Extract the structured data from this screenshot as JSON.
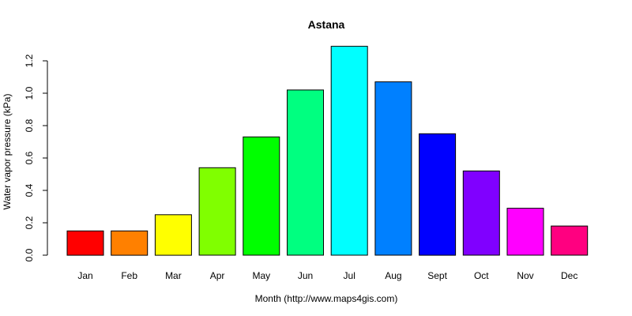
{
  "chart_data": {
    "type": "bar",
    "title": "Astana",
    "xlabel": "Month (http://www.maps4gis.com)",
    "ylabel": "Water vapor pressure (kPa)",
    "categories": [
      "Jan",
      "Feb",
      "Mar",
      "Apr",
      "May",
      "Jun",
      "Jul",
      "Aug",
      "Sept",
      "Oct",
      "Nov",
      "Dec"
    ],
    "values": [
      0.15,
      0.15,
      0.25,
      0.54,
      0.73,
      1.02,
      1.29,
      1.07,
      0.75,
      0.52,
      0.29,
      0.18
    ],
    "colors": [
      "#ff0000",
      "#ff8000",
      "#ffff00",
      "#80ff00",
      "#00ff00",
      "#00ff80",
      "#00ffff",
      "#0080ff",
      "#0000ff",
      "#8000ff",
      "#ff00ff",
      "#ff0080"
    ],
    "yticks": [
      "0.0",
      "0.2",
      "0.4",
      "0.6",
      "0.8",
      "1.0",
      "1.2"
    ],
    "ylim": [
      0,
      1.2
    ],
    "grid": false,
    "legend": "none"
  }
}
